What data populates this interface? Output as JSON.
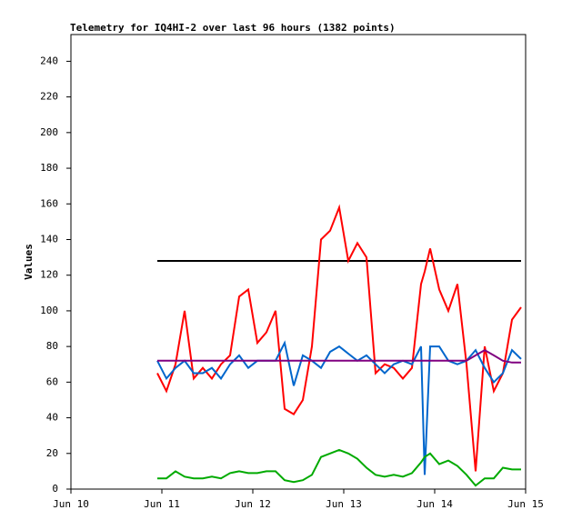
{
  "chart_data": {
    "type": "line",
    "title": "Telemetry for IQ4HI-2 over last 96 hours (1382 points)",
    "y_label": "Values",
    "x": [
      10.95,
      11.05,
      11.15,
      11.25,
      11.35,
      11.45,
      11.55,
      11.65,
      11.75,
      11.85,
      11.95,
      12.05,
      12.15,
      12.25,
      12.35,
      12.45,
      12.55,
      12.65,
      12.75,
      12.85,
      12.95,
      13.05,
      13.15,
      13.25,
      13.35,
      13.45,
      13.55,
      13.65,
      13.75,
      13.85,
      13.89,
      13.95,
      14.05,
      14.15,
      14.25,
      14.35,
      14.45,
      14.55,
      14.65,
      14.75,
      14.85,
      14.95
    ],
    "series": [
      {
        "color": "#000000",
        "values": [
          128,
          128,
          128,
          128,
          128,
          128,
          128,
          128,
          128,
          128,
          128,
          128,
          128,
          128,
          128,
          128,
          128,
          128,
          128,
          128,
          128,
          128,
          128,
          128,
          128,
          128,
          128,
          128,
          128,
          128,
          128,
          128,
          128,
          128,
          128,
          128,
          128,
          128,
          128,
          128,
          128,
          128
        ]
      },
      {
        "color": "#ff0000",
        "values": [
          65,
          55,
          70,
          100,
          62,
          68,
          62,
          70,
          75,
          108,
          112,
          82,
          88,
          100,
          45,
          42,
          50,
          80,
          140,
          145,
          158,
          128,
          138,
          130,
          65,
          70,
          68,
          62,
          68,
          115,
          122,
          135,
          112,
          100,
          115,
          70,
          10,
          80,
          55,
          65,
          95,
          102
        ]
      },
      {
        "color": "#0066cc",
        "values": [
          72,
          62,
          68,
          72,
          65,
          65,
          68,
          62,
          70,
          75,
          68,
          72,
          72,
          72,
          82,
          58,
          75,
          72,
          68,
          77,
          80,
          76,
          72,
          75,
          70,
          65,
          70,
          72,
          70,
          80,
          8,
          80,
          80,
          72,
          70,
          72,
          78,
          68,
          60,
          65,
          78,
          73
        ]
      },
      {
        "color": "#800080",
        "values": [
          72,
          72,
          72,
          72,
          72,
          72,
          72,
          72,
          72,
          72,
          72,
          72,
          72,
          72,
          72,
          72,
          72,
          72,
          72,
          72,
          72,
          72,
          72,
          72,
          72,
          72,
          72,
          72,
          72,
          72,
          72,
          72,
          72,
          72,
          72,
          72,
          75,
          78,
          75,
          72,
          71,
          71
        ]
      },
      {
        "color": "#00aa00",
        "values": [
          6,
          6,
          10,
          7,
          6,
          6,
          7,
          6,
          9,
          10,
          9,
          9,
          10,
          10,
          5,
          4,
          5,
          8,
          18,
          20,
          22,
          20,
          17,
          12,
          8,
          7,
          8,
          7,
          9,
          15,
          18,
          20,
          14,
          16,
          13,
          8,
          2,
          6,
          6,
          12,
          11,
          11
        ]
      }
    ],
    "xlim": [
      10,
      15
    ],
    "xticks": [
      {
        "value": 10,
        "label": "Jun 10"
      },
      {
        "value": 11,
        "label": "Jun 11"
      },
      {
        "value": 12,
        "label": "Jun 12"
      },
      {
        "value": 13,
        "label": "Jun 13"
      },
      {
        "value": 14,
        "label": "Jun 14"
      },
      {
        "value": 15,
        "label": "Jun 15"
      }
    ],
    "ylim": [
      0,
      255
    ],
    "yticks": [
      0,
      20,
      40,
      60,
      80,
      100,
      120,
      140,
      160,
      180,
      200,
      220,
      240
    ]
  }
}
